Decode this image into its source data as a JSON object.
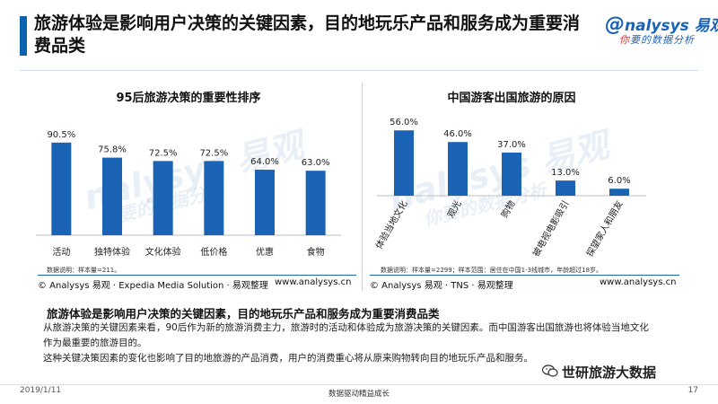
{
  "header": {
    "title": "旅游体验是影响用户决策的关键因素，目的地玩乐产品和服务成为重要消费品类",
    "logo_main": "nalysys 易观",
    "logo_sub_red": "你",
    "logo_sub_rest": "要的数据分析"
  },
  "watermark": {
    "main": "nalysys 易观",
    "sub": "你要的数据分析"
  },
  "left_panel": {
    "note": "数据说明：样本量=211。",
    "source": "© Analysys 易观 · Expedia Media Solution · 易观整理",
    "url": "www.analysys.cn"
  },
  "right_panel": {
    "note": "数据说明：样本量=2299；样本范围：居住在中国1-3线城市，年龄超过18岁。",
    "source": "© Analysys 易观 · TNS · 易观整理",
    "url": "www.analysys.cn"
  },
  "chart_data": [
    {
      "type": "bar",
      "title": "95后旅游决策的重要性排序",
      "categories": [
        "活动",
        "独特体验",
        "文化体验",
        "低价格",
        "优惠",
        "食物"
      ],
      "values": [
        90.5,
        75.8,
        72.5,
        72.5,
        64.0,
        63.0
      ],
      "value_labels": [
        "90.5%",
        "75.8%",
        "72.5%",
        "72.5%",
        "64.0%",
        "63.0%"
      ],
      "ylim": [
        0,
        100
      ],
      "grid": false,
      "color": "#1b63b5"
    },
    {
      "type": "bar",
      "title": "中国游客出国旅游的原因",
      "categories": [
        "体验当地文化",
        "观光",
        "购物",
        "被电视电影吸引",
        "探望家人和朋友"
      ],
      "values": [
        56.0,
        46.0,
        37.0,
        13.0,
        6.0
      ],
      "value_labels": [
        "56.0%",
        "46.0%",
        "37.0%",
        "13.0%",
        "6.0%"
      ],
      "ylim": [
        0,
        60
      ],
      "grid": false,
      "color": "#1b63b5"
    }
  ],
  "summary": {
    "title": "旅游体验是影响用户决策的关键因素，目的地玩乐产品和服务成为重要消费品类",
    "paragraphs": [
      "从旅游决策的关键因素来看，90后作为新的旅游消费主力，旅游时的活动和体验成为旅游决策的关键因素。而中国游客出国旅游也将体验当地文化作为最重要的旅游目的。",
      "这种关键决策因素的变化也影响了目的地旅游的产品消费，用户的消费重心将从原来购物转向目的地玩乐产品和服务。"
    ]
  },
  "overlay": {
    "wechat_text": "世研旅游大数据"
  },
  "footer": {
    "date": "2019/1/11",
    "center": "数据驱动精益成长",
    "page": "17"
  }
}
